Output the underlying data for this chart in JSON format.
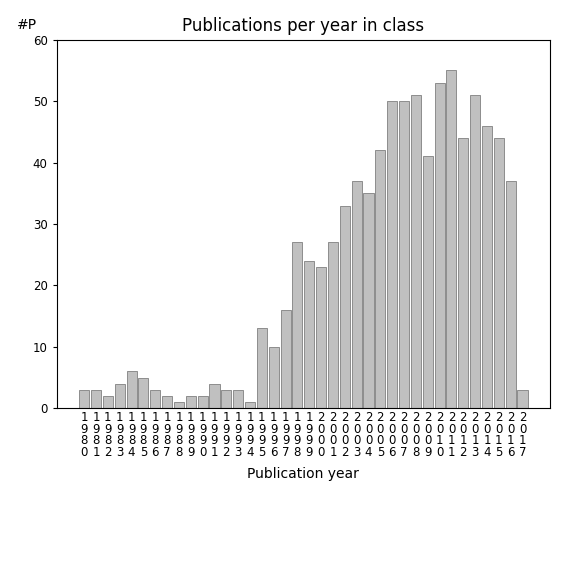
{
  "title": "Publications per year in class",
  "xlabel": "Publication year",
  "ylabel": "#P",
  "years": [
    "1980",
    "1981",
    "1982",
    "1983",
    "1984",
    "1985",
    "1986",
    "1987",
    "1988",
    "1989",
    "1990",
    "1991",
    "1992",
    "1993",
    "1994",
    "1995",
    "1996",
    "1997",
    "1998",
    "1999",
    "2000",
    "2001",
    "2002",
    "2003",
    "2004",
    "2005",
    "2006",
    "2007",
    "2008",
    "2009",
    "2010",
    "2011",
    "2012",
    "2013",
    "2014",
    "2015",
    "2016",
    "2017"
  ],
  "values": [
    3,
    3,
    2,
    4,
    6,
    5,
    3,
    2,
    1,
    2,
    2,
    4,
    3,
    3,
    1,
    13,
    10,
    16,
    27,
    24,
    23,
    27,
    33,
    37,
    35,
    42,
    50,
    50,
    51,
    41,
    53,
    55,
    44,
    51,
    46,
    44,
    37,
    3
  ],
  "bar_color": "#c0c0c0",
  "bar_edgecolor": "#808080",
  "ylim": [
    0,
    60
  ],
  "yticks": [
    0,
    10,
    20,
    30,
    40,
    50,
    60
  ],
  "background_color": "#ffffff",
  "title_fontsize": 12,
  "label_fontsize": 10,
  "tick_fontsize": 8.5
}
